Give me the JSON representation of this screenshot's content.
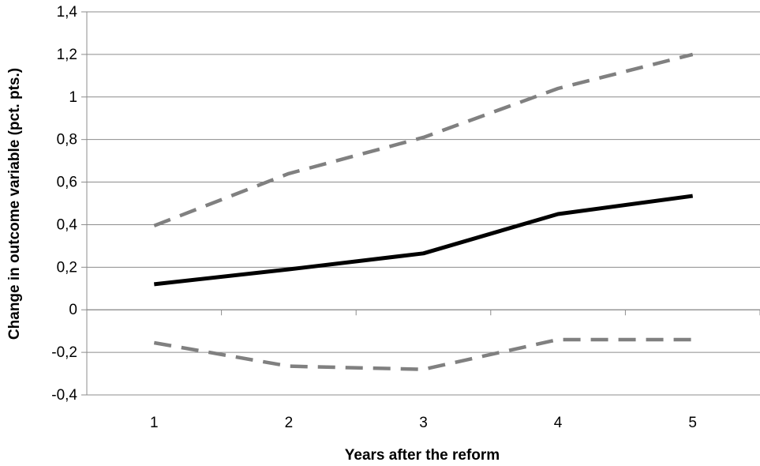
{
  "chart_data": {
    "type": "line",
    "title": "",
    "xlabel": "Years after the reform",
    "ylabel": "Change in outcome variable (pct. pts.)",
    "categories": [
      "1",
      "2",
      "3",
      "4",
      "5"
    ],
    "ylim": [
      -0.4,
      1.4
    ],
    "yticks": [
      -0.4,
      -0.2,
      0,
      0.2,
      0.4,
      0.6,
      0.8,
      1,
      1.2,
      1.4
    ],
    "ytick_labels": [
      "-0,4",
      "-0,2",
      "0",
      "0,2",
      "0,4",
      "0,6",
      "0,8",
      "1",
      "1,2",
      "1,4"
    ],
    "grid": true,
    "legend": "none",
    "series": [
      {
        "values": [
          0.12,
          0.19,
          0.265,
          0.45,
          0.535
        ],
        "color": "#000000",
        "style": "solid"
      },
      {
        "values": [
          0.395,
          0.64,
          0.81,
          1.04,
          1.2
        ],
        "color": "#808080",
        "style": "dashed"
      },
      {
        "values": [
          -0.155,
          -0.265,
          -0.28,
          -0.14,
          -0.14
        ],
        "color": "#808080",
        "style": "dashed"
      }
    ]
  }
}
